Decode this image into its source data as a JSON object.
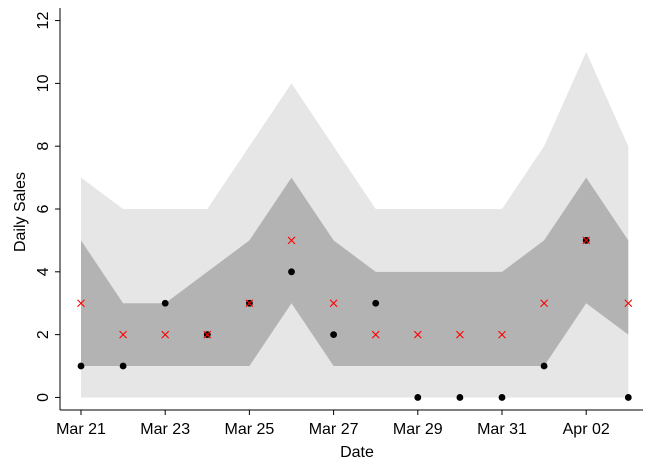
{
  "chart_data": {
    "type": "scatter",
    "title": "",
    "xlabel": "Date",
    "ylabel": "Daily Sales",
    "x": [
      "2021-03-21",
      "2021-03-22",
      "2021-03-23",
      "2021-03-24",
      "2021-03-25",
      "2021-03-26",
      "2021-03-27",
      "2021-03-28",
      "2021-03-29",
      "2021-03-30",
      "2021-03-31",
      "2021-04-01",
      "2021-04-02",
      "2021-04-03"
    ],
    "x_tick_labels": [
      "Mar 21",
      "Mar 23",
      "Mar 25",
      "Mar 27",
      "Mar 29",
      "Mar 31",
      "Apr 02"
    ],
    "y_ticks": [
      0,
      2,
      4,
      6,
      8,
      10,
      12
    ],
    "ylim": [
      -0.4,
      12.4
    ],
    "grid": false,
    "legend": "none",
    "series": [
      {
        "kind": "band",
        "color": "#e6e6e6",
        "lower": [
          0,
          0,
          0,
          0,
          0,
          0,
          0,
          0,
          0,
          0,
          0,
          0,
          0,
          0
        ],
        "upper": [
          7,
          6,
          6,
          6,
          8,
          10,
          8,
          6,
          6,
          6,
          6,
          8,
          11,
          8
        ]
      },
      {
        "kind": "band",
        "color": "#b3b3b3",
        "lower": [
          1,
          1,
          1,
          1,
          1,
          3,
          1,
          1,
          1,
          1,
          1,
          1,
          3,
          2
        ],
        "upper": [
          5,
          3,
          3,
          4,
          5,
          7,
          5,
          4,
          4,
          4,
          4,
          5,
          7,
          5
        ]
      },
      {
        "kind": "points",
        "marker": "dot",
        "color": "#000000",
        "values": [
          1,
          1,
          3,
          2,
          3,
          4,
          2,
          3,
          0,
          0,
          0,
          1,
          5,
          0
        ]
      },
      {
        "kind": "points",
        "marker": "x",
        "color": "#ff0000",
        "values": [
          3,
          2,
          2,
          2,
          3,
          5,
          3,
          2,
          2,
          2,
          2,
          3,
          5,
          3
        ]
      }
    ]
  }
}
